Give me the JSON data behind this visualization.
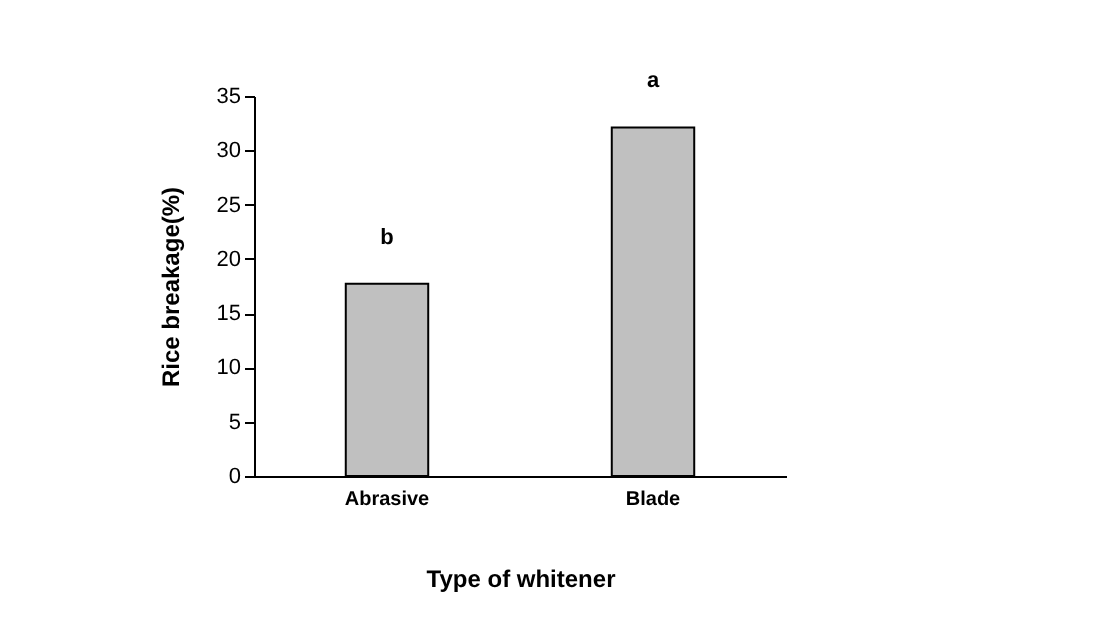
{
  "chart_data": {
    "type": "bar",
    "xlabel": "Type of whitener",
    "ylabel": "Rice breakage(%)",
    "categories": [
      "Abrasive",
      "Blade"
    ],
    "values": [
      17.7,
      32.1
    ],
    "color": "#c0c0c0",
    "ylim": [
      0,
      35
    ],
    "yticks": [
      0,
      5,
      10,
      15,
      20,
      25,
      30,
      35
    ],
    "grid": false,
    "annotations": [
      {
        "text": "b",
        "x": "Abrasive",
        "y": 17.7
      },
      {
        "text": "a",
        "x": "Blade",
        "y": 32.1
      }
    ]
  }
}
